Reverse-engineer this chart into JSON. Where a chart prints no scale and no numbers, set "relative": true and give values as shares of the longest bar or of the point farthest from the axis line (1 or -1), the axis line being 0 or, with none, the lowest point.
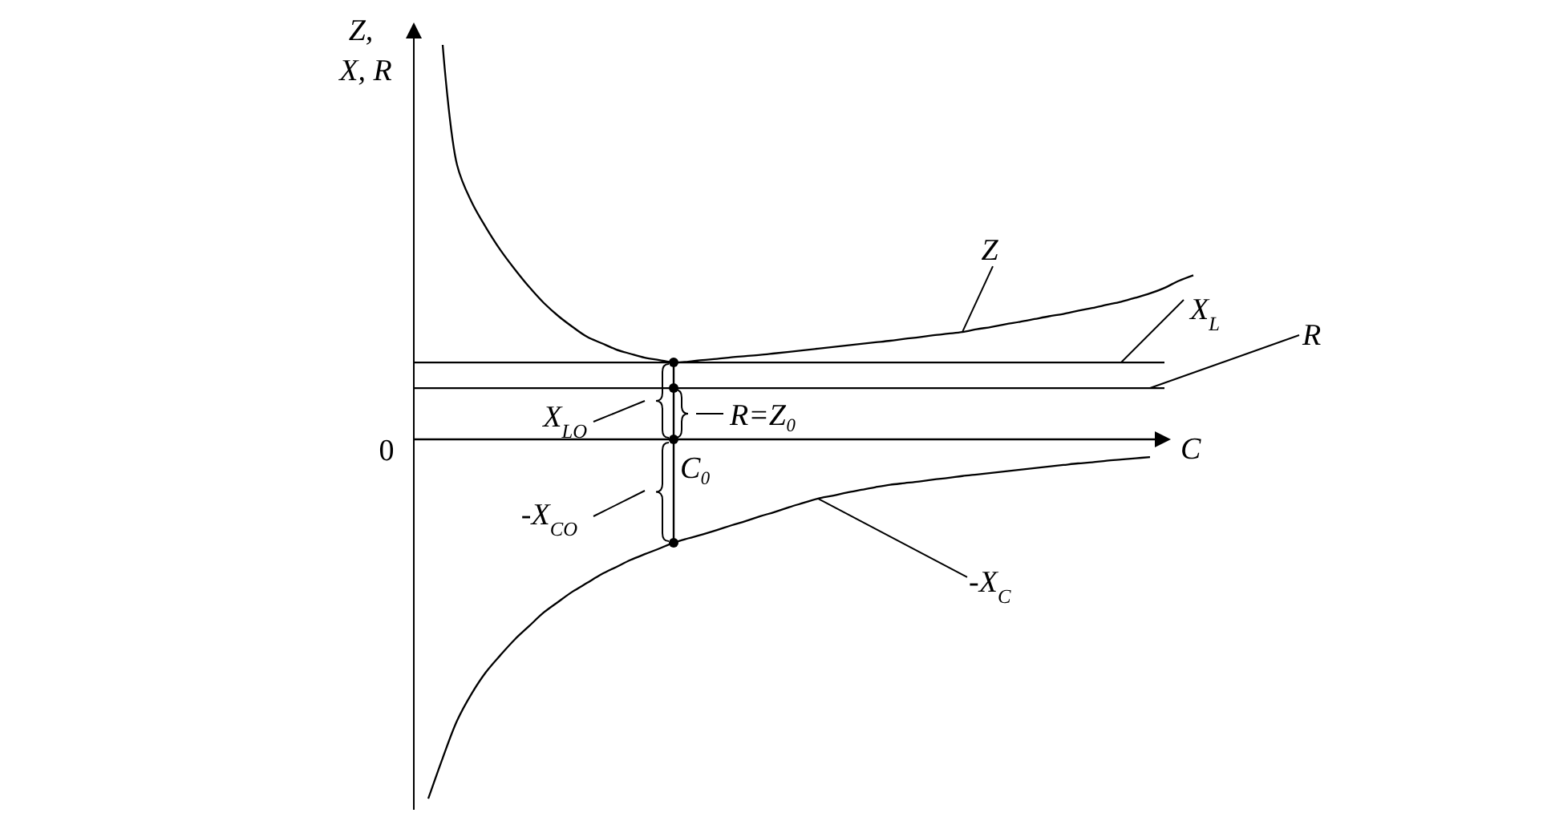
{
  "chart_data": {
    "type": "line",
    "relative": true,
    "xlabel": "C",
    "ylabel": "Z, X, R",
    "categories": [
      null,
      null,
      null,
      null,
      null,
      null,
      null,
      null,
      null,
      null,
      null,
      null,
      null,
      null,
      null,
      null,
      null,
      null,
      null,
      null,
      null,
      null,
      null,
      null,
      null,
      null,
      null,
      null,
      null,
      null,
      null,
      null,
      null,
      null,
      null,
      null,
      null,
      null,
      null,
      null,
      null,
      null,
      null,
      null,
      null,
      null,
      null,
      null,
      null,
      null,
      null,
      null,
      null,
      null,
      null
    ],
    "series": [
      {
        "name": "Z",
        "color": "#000000",
        "values": [
          null,
          null,
          1,
          0.695,
          0.602,
          0.537,
          0.48,
          0.431,
          0.386,
          0.346,
          0.313,
          0.285,
          0.26,
          0.244,
          0.228,
          0.217,
          0.207,
          0.201,
          0.195,
          0.197,
          0.201,
          0.204,
          0.208,
          0.211,
          0.214,
          0.218,
          0.222,
          0.226,
          0.23,
          0.234,
          0.238,
          0.242,
          0.246,
          0.25,
          0.255,
          0.259,
          0.264,
          0.268,
          0.272,
          0.279,
          0.285,
          0.292,
          0.298,
          0.305,
          0.312,
          0.318,
          0.326,
          0.333,
          0.341,
          0.349,
          0.359,
          0.37,
          0.384,
          0.402,
          0.416
        ]
      },
      {
        "name": "X$_{L}$",
        "color": "#000000",
        "values": [
          0.195,
          0.195,
          0.195,
          0.195,
          0.195,
          0.195,
          0.195,
          0.195,
          0.195,
          0.195,
          0.195,
          0.195,
          0.195,
          0.195,
          0.195,
          0.195,
          0.195,
          0.195,
          0.195,
          0.195,
          0.195,
          0.195,
          0.195,
          0.195,
          0.195,
          0.195,
          0.195,
          0.195,
          0.195,
          0.195,
          0.195,
          0.195,
          0.195,
          0.195,
          0.195,
          0.195,
          0.195,
          0.195,
          0.195,
          0.195,
          0.195,
          0.195,
          0.195,
          0.195,
          0.195,
          0.195,
          0.195,
          0.195,
          0.195,
          0.195,
          0.195,
          0.195,
          0.195,
          null,
          null
        ]
      },
      {
        "name": "R",
        "color": "#000000",
        "values": [
          0.13,
          0.13,
          0.13,
          0.13,
          0.13,
          0.13,
          0.13,
          0.13,
          0.13,
          0.13,
          0.13,
          0.13,
          0.13,
          0.13,
          0.13,
          0.13,
          0.13,
          0.13,
          0.13,
          0.13,
          0.13,
          0.13,
          0.13,
          0.13,
          0.13,
          0.13,
          0.13,
          0.13,
          0.13,
          0.13,
          0.13,
          0.13,
          0.13,
          0.13,
          0.13,
          0.13,
          0.13,
          0.13,
          0.13,
          0.13,
          0.13,
          0.13,
          0.13,
          0.13,
          0.13,
          0.13,
          0.13,
          0.13,
          0.13,
          0.13,
          0.13,
          0.13,
          0.13,
          null,
          null
        ]
      },
      {
        "name": "-X$_{C}$",
        "color": "#000000",
        "values": [
          null,
          -0.911,
          -0.808,
          -0.713,
          -0.645,
          -0.59,
          -0.547,
          -0.507,
          -0.473,
          -0.439,
          -0.412,
          -0.386,
          -0.364,
          -0.342,
          -0.324,
          -0.306,
          -0.291,
          -0.277,
          -0.262,
          -0.251,
          -0.241,
          -0.23,
          -0.218,
          -0.207,
          -0.195,
          -0.184,
          -0.172,
          -0.161,
          -0.15,
          -0.143,
          -0.135,
          -0.128,
          -0.121,
          -0.115,
          -0.111,
          -0.107,
          -0.102,
          -0.098,
          -0.093,
          -0.089,
          -0.085,
          -0.081,
          -0.077,
          -0.073,
          -0.069,
          -0.065,
          -0.061,
          -0.058,
          -0.054,
          -0.051,
          -0.048,
          -0.045,
          null,
          null,
          null
        ]
      }
    ],
    "annotations": [
      "0",
      "X$_{LO}$",
      "R=Z₀",
      "C₀",
      "-X$_{CO}$"
    ]
  }
}
